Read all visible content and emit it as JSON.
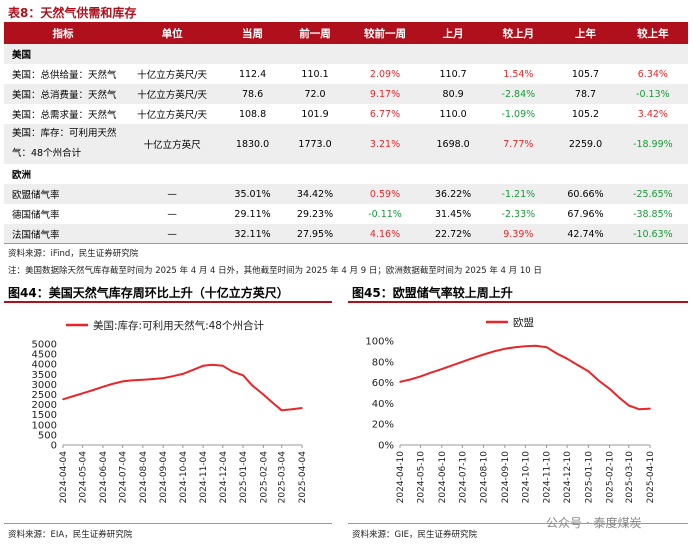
{
  "table": {
    "title": "表8：天然气供需和库存",
    "headers": [
      "指标",
      "单位",
      "当周",
      "前一周",
      "较前一周",
      "上月",
      "较上月",
      "上年",
      "较上年"
    ],
    "sections": [
      {
        "name": "美国",
        "rows": [
          {
            "indicator": "美国：总供给量：天然气",
            "unit": "十亿立方英尺/天",
            "cur": "112.4",
            "prev_week": "110.1",
            "wow": "2.09%",
            "prev_month": "110.7",
            "mom": "1.54%",
            "prev_year": "105.7",
            "yoy": "6.34%",
            "wow_color": "red",
            "mom_color": "red",
            "yoy_color": "red"
          },
          {
            "indicator": "美国：总消费量：天然气",
            "unit": "十亿立方英尺/天",
            "cur": "78.6",
            "prev_week": "72.0",
            "wow": "9.17%",
            "prev_month": "80.9",
            "mom": "-2.84%",
            "prev_year": "78.7",
            "yoy": "-0.13%",
            "wow_color": "red",
            "mom_color": "green",
            "yoy_color": "green"
          },
          {
            "indicator": "美国：总需求量：天然气",
            "unit": "十亿立方英尺/天",
            "cur": "108.8",
            "prev_week": "101.9",
            "wow": "6.77%",
            "prev_month": "110.0",
            "mom": "-1.09%",
            "prev_year": "105.2",
            "yoy": "3.42%",
            "wow_color": "red",
            "mom_color": "green",
            "yoy_color": "red"
          },
          {
            "indicator": "美国：库存：可利用天然气：48个州合计",
            "unit": "十亿立方英尺",
            "cur": "1830.0",
            "prev_week": "1773.0",
            "wow": "3.21%",
            "prev_month": "1698.0",
            "mom": "7.77%",
            "prev_year": "2259.0",
            "yoy": "-18.99%",
            "wow_color": "red",
            "mom_color": "red",
            "yoy_color": "green"
          }
        ]
      },
      {
        "name": "欧洲",
        "rows": [
          {
            "indicator": "欧盟储气率",
            "unit": "—",
            "cur": "35.01%",
            "prev_week": "34.42%",
            "wow": "0.59%",
            "prev_month": "36.22%",
            "mom": "-1.21%",
            "prev_year": "60.66%",
            "yoy": "-25.65%",
            "wow_color": "red",
            "mom_color": "green",
            "yoy_color": "green"
          },
          {
            "indicator": "德国储气率",
            "unit": "—",
            "cur": "29.11%",
            "prev_week": "29.23%",
            "wow": "-0.11%",
            "prev_month": "31.45%",
            "mom": "-2.33%",
            "prev_year": "67.96%",
            "yoy": "-38.85%",
            "wow_color": "green",
            "mom_color": "green",
            "yoy_color": "green"
          },
          {
            "indicator": "法国储气率",
            "unit": "—",
            "cur": "32.11%",
            "prev_week": "27.95%",
            "wow": "4.16%",
            "prev_month": "22.72%",
            "mom": "9.39%",
            "prev_year": "42.74%",
            "yoy": "-10.63%",
            "wow_color": "red",
            "mom_color": "red",
            "yoy_color": "green"
          }
        ]
      }
    ],
    "source": "资料来源：iFind，民生证券研究院",
    "note": "注：美国数据除天然气库存截至时间为 2025 年 4 月 4 日外，其他截至时间为 2025 年 4 月 9 日；欧洲数据截至时间为 2025 年 4 月 10 日"
  },
  "fig44": {
    "title": "图44：美国天然气库存周环比上升（十亿立方英尺）",
    "source": "资料来源：EIA，民生证券研究院"
  },
  "fig45": {
    "title": "图45：欧盟储气率较上周上升",
    "source": "资料来源：GIE，民生证券研究院"
  },
  "watermark": "公众号 · 泰度煤炭",
  "colors": {
    "accent": "#b0101c",
    "positive": "#e8262a",
    "negative": "#1a9a3a"
  },
  "chart_data": [
    {
      "type": "line",
      "title": "",
      "series": [
        {
          "name": "美国:库存:可利用天然气:48个州合计",
          "x": [
            "2024-04-04",
            "2024-04-18",
            "2024-05-04",
            "2024-05-18",
            "2024-06-04",
            "2024-06-18",
            "2024-07-04",
            "2024-07-18",
            "2024-08-04",
            "2024-08-18",
            "2024-09-04",
            "2024-09-18",
            "2024-10-04",
            "2024-10-18",
            "2024-11-04",
            "2024-11-18",
            "2024-12-04",
            "2024-12-18",
            "2025-01-04",
            "2025-01-18",
            "2025-02-04",
            "2025-02-18",
            "2025-03-04",
            "2025-03-18",
            "2025-04-04"
          ],
          "values": [
            2260,
            2400,
            2560,
            2700,
            2880,
            3020,
            3150,
            3200,
            3230,
            3260,
            3310,
            3400,
            3520,
            3700,
            3920,
            3970,
            3920,
            3650,
            3450,
            2950,
            2500,
            2100,
            1720,
            1760,
            1830
          ]
        }
      ],
      "x_ticks": [
        "2024-04-04",
        "2024-05-04",
        "2024-06-04",
        "2024-07-04",
        "2024-08-04",
        "2024-09-04",
        "2024-10-04",
        "2024-11-04",
        "2024-12-04",
        "2025-01-04",
        "2025-02-04",
        "2025-03-04",
        "2025-04-04"
      ],
      "y_ticks": [
        "0",
        "500",
        "1000",
        "1500",
        "2000",
        "2500",
        "3000",
        "3500",
        "4000",
        "4500",
        "5000"
      ],
      "ylim": [
        0,
        5000
      ],
      "legend": "top-left",
      "color": "#e8262a"
    },
    {
      "type": "line",
      "title": "",
      "series": [
        {
          "name": "欧盟",
          "x": [
            "2024-04-10",
            "2024-04-25",
            "2024-05-10",
            "2024-05-25",
            "2024-06-10",
            "2024-06-25",
            "2024-07-10",
            "2024-07-25",
            "2024-08-10",
            "2024-08-25",
            "2024-09-10",
            "2024-09-25",
            "2024-10-10",
            "2024-10-25",
            "2024-11-10",
            "2024-11-25",
            "2024-12-10",
            "2024-12-25",
            "2025-01-10",
            "2025-01-25",
            "2025-02-10",
            "2025-02-25",
            "2025-03-10",
            "2025-03-25",
            "2025-04-10"
          ],
          "values": [
            60.7,
            63,
            66,
            69.5,
            73,
            76.5,
            80,
            83.5,
            87,
            90,
            92.5,
            94,
            95,
            95.5,
            94,
            88,
            83,
            77,
            71,
            62,
            54,
            45,
            38,
            34.4,
            35.0
          ]
        }
      ],
      "x_ticks": [
        "2024-04-10",
        "2024-05-10",
        "2024-06-10",
        "2024-07-10",
        "2024-08-10",
        "2024-09-10",
        "2024-10-10",
        "2024-11-10",
        "2024-12-10",
        "2025-01-10",
        "2025-02-10",
        "2025-03-10",
        "2025-04-10"
      ],
      "y_ticks": [
        "0%",
        "20%",
        "40%",
        "60%",
        "80%",
        "100%"
      ],
      "ylim": [
        0,
        100
      ],
      "legend": "top-center",
      "color": "#e8262a"
    }
  ]
}
